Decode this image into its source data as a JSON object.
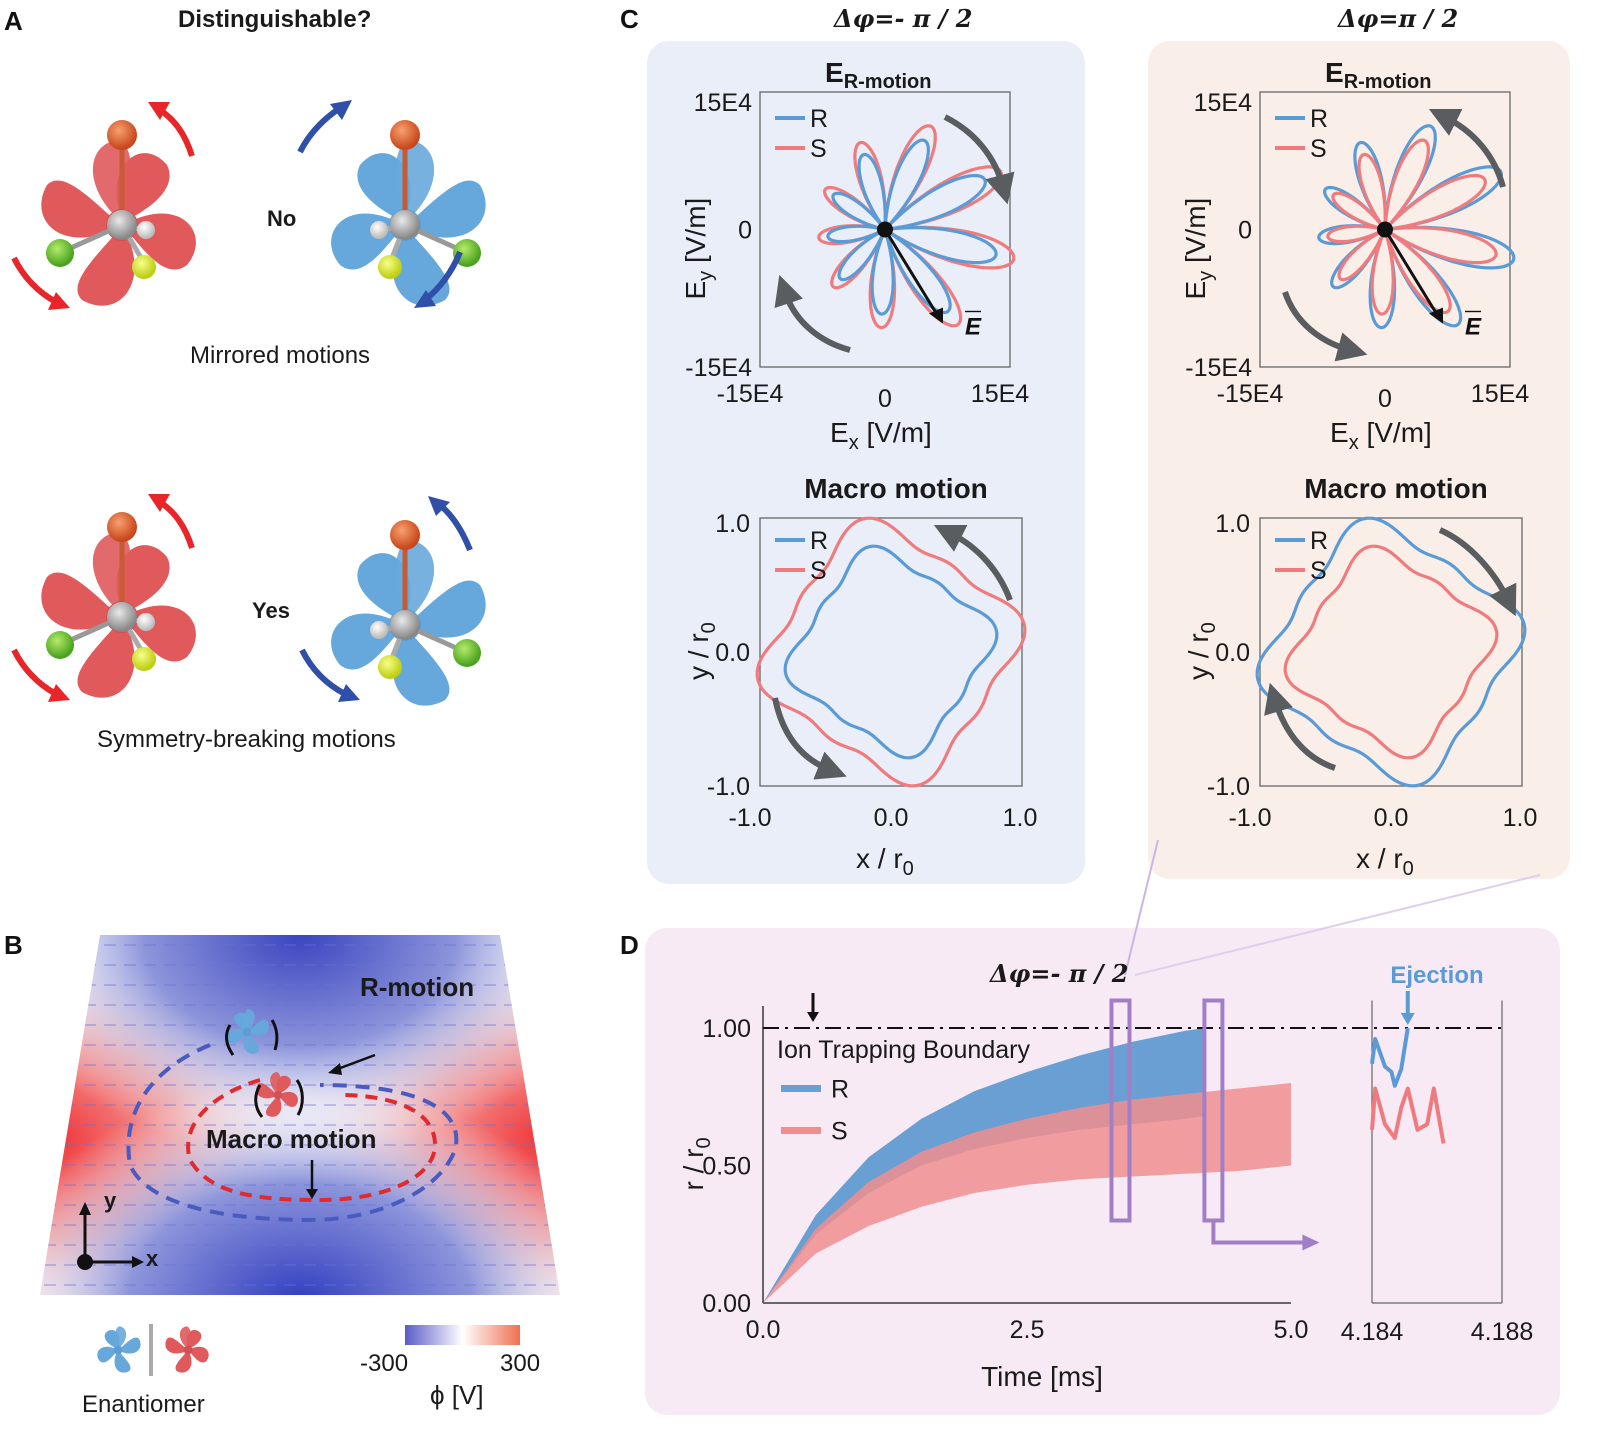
{
  "panels": {
    "A": {
      "letter": "A",
      "title": "Distinguishable?",
      "row1_answer": "No",
      "row1_caption": "Mirrored motions",
      "row2_answer": "Yes",
      "row2_caption": "Symmetry-breaking motions"
    },
    "B": {
      "letter": "B",
      "r_motion_label": "R-motion",
      "macro_motion_label": "Macro motion",
      "axis_x": "x",
      "axis_y": "y",
      "enantiomer_label": "Enantiomer",
      "colorbar": {
        "min": "-300",
        "max": "300",
        "label": "ϕ [V]",
        "colors": [
          "#5b5bc8",
          "#ffffff",
          "#f07050"
        ]
      }
    },
    "C": {
      "letter": "C",
      "left_phase": "Δφ=- π / 2",
      "right_phase": "Δφ=π / 2",
      "field_plot_title_main": "E",
      "field_plot_title_sub": "R-motion",
      "field_xlabel_main": "E",
      "field_xlabel_sub": "x",
      "field_xlabel_unit": " [V/m]",
      "field_ylabel_main": "E",
      "field_ylabel_sub": "y",
      "field_ylabel_unit": " [V/m]",
      "field_ticks": [
        "-15E4",
        "0",
        "15E4"
      ],
      "vector_label": "E",
      "macro_title": "Macro motion",
      "macro_xlabel": "x / r",
      "macro_ylabel": "y / r",
      "macro_sub": "0",
      "macro_ticks": [
        "-1.0",
        "0.0",
        "1.0"
      ],
      "legend": [
        "R",
        "S"
      ]
    },
    "D": {
      "letter": "D",
      "phase": "Δφ=- π / 2",
      "boundary_label": "Ion Trapping Boundary",
      "ejection_label": "Ejection",
      "xlabel": "Time [ms]",
      "ylabel": "r / r",
      "ylabel_sub": "0",
      "x_ticks": [
        "0.0",
        "2.5",
        "5.0"
      ],
      "y_ticks": [
        "0.00",
        "0.50",
        "1.00"
      ],
      "inset_x_ticks": [
        "4.184",
        "4.188"
      ],
      "legend": [
        "R",
        "S"
      ]
    }
  },
  "colors": {
    "R": "#5b9bd5",
    "S": "#ef7b7e",
    "R_band": "#6a9fd4",
    "S_band": "#f08e8e",
    "overlap_band": "#da8590",
    "highlight_box": "#a07fc6",
    "rotation_arrow": "#5a5d60"
  },
  "chart_data": [
    {
      "type": "line",
      "title": "E_R-motion (Δφ=-π/2)",
      "xlabel": "Ex [V/m]",
      "ylabel": "Ey [V/m]",
      "xlim": [
        -150000,
        150000
      ],
      "ylim": [
        -150000,
        150000
      ],
      "x_ticks": [
        "-15E4",
        "0",
        "15E4"
      ],
      "y_ticks": [
        "-15E4",
        "0",
        "15E4"
      ],
      "legend": [
        "R",
        "S"
      ],
      "legend_position": "top-left",
      "series": [
        {
          "name": "R",
          "shape": "9-petal rose",
          "max_radius": 125000
        },
        {
          "name": "S",
          "shape": "9-petal rose",
          "max_radius": 145000
        }
      ],
      "rotation": "clockwise",
      "annotation": "E vector"
    },
    {
      "type": "line",
      "title": "E_R-motion (Δφ=π/2)",
      "xlabel": "Ex [V/m]",
      "ylabel": "Ey [V/m]",
      "xlim": [
        -150000,
        150000
      ],
      "ylim": [
        -150000,
        150000
      ],
      "x_ticks": [
        "-15E4",
        "0",
        "15E4"
      ],
      "y_ticks": [
        "-15E4",
        "0",
        "15E4"
      ],
      "legend": [
        "R",
        "S"
      ],
      "legend_position": "top-left",
      "series": [
        {
          "name": "R",
          "shape": "9-petal rose",
          "max_radius": 145000
        },
        {
          "name": "S",
          "shape": "9-petal rose",
          "max_radius": 125000
        }
      ],
      "rotation": "counterclockwise",
      "annotation": "E vector"
    },
    {
      "type": "line",
      "title": "Macro motion (Δφ=-π/2)",
      "xlabel": "x / r0",
      "ylabel": "y / r0",
      "xlim": [
        -1.0,
        1.0
      ],
      "ylim": [
        -1.0,
        1.0
      ],
      "x_ticks": [
        "-1.0",
        "0.0",
        "1.0"
      ],
      "y_ticks": [
        "-1.0",
        "0.0",
        "1.0"
      ],
      "legend": [
        "R",
        "S"
      ],
      "legend_position": "top-left",
      "series": [
        {
          "name": "R",
          "shape": "closed 4-lobed orbit",
          "approx_radius": 0.68
        },
        {
          "name": "S",
          "shape": "closed 4-lobed orbit",
          "approx_radius": 0.86
        }
      ],
      "rotation": "counterclockwise"
    },
    {
      "type": "line",
      "title": "Macro motion (Δφ=π/2)",
      "xlabel": "x / r0",
      "ylabel": "y / r0",
      "xlim": [
        -1.0,
        1.0
      ],
      "ylim": [
        -1.0,
        1.0
      ],
      "x_ticks": [
        "-1.0",
        "0.0",
        "1.0"
      ],
      "y_ticks": [
        "-1.0",
        "0.0",
        "1.0"
      ],
      "legend": [
        "R",
        "S"
      ],
      "legend_position": "top-left",
      "series": [
        {
          "name": "R",
          "shape": "closed 4-lobed orbit",
          "approx_radius": 0.86
        },
        {
          "name": "S",
          "shape": "closed 4-lobed orbit",
          "approx_radius": 0.68
        }
      ],
      "rotation": "clockwise"
    },
    {
      "type": "area",
      "title": "Δφ=-π/2",
      "xlabel": "Time [ms]",
      "ylabel": "r / r0",
      "xlim": [
        0.0,
        5.0
      ],
      "ylim": [
        0.0,
        1.0
      ],
      "x_ticks": [
        "0.0",
        "2.5",
        "5.0"
      ],
      "y_ticks": [
        "0.00",
        "0.50",
        "1.00"
      ],
      "legend": [
        "R",
        "S"
      ],
      "legend_position": "left",
      "reference_line": {
        "y": 1.0,
        "label": "Ion Trapping Boundary",
        "style": "dash-dot"
      },
      "series": [
        {
          "name": "R",
          "x": [
            0,
            0.5,
            1.0,
            1.5,
            2.0,
            2.5,
            3.0,
            3.5,
            4.0,
            4.19
          ],
          "upper": [
            0,
            0.32,
            0.53,
            0.67,
            0.77,
            0.84,
            0.9,
            0.95,
            0.99,
            1.0
          ],
          "lower": [
            0,
            0.25,
            0.4,
            0.5,
            0.56,
            0.6,
            0.63,
            0.65,
            0.67,
            0.68
          ]
        },
        {
          "name": "S",
          "x": [
            0,
            0.5,
            1.0,
            1.5,
            2.0,
            2.5,
            3.0,
            3.5,
            4.0,
            4.5,
            5.0
          ],
          "upper": [
            0,
            0.27,
            0.44,
            0.55,
            0.62,
            0.67,
            0.71,
            0.74,
            0.76,
            0.78,
            0.8
          ],
          "lower": [
            0,
            0.18,
            0.28,
            0.35,
            0.4,
            0.43,
            0.45,
            0.46,
            0.47,
            0.48,
            0.5
          ]
        }
      ]
    },
    {
      "type": "line",
      "title": "Inset zoom",
      "xlabel": "",
      "ylabel": "",
      "xlim": [
        4.184,
        4.188
      ],
      "ylim": [
        0.0,
        1.0
      ],
      "x_ticks": [
        "4.184",
        "4.188"
      ],
      "annotation": "Ejection",
      "series": [
        {
          "name": "R",
          "x": [
            4.184,
            4.1841,
            4.1844,
            4.1846,
            4.1847,
            4.1849,
            4.1851
          ],
          "y": [
            0.87,
            0.96,
            0.86,
            0.84,
            0.79,
            0.85,
            1.0
          ]
        },
        {
          "name": "S",
          "x": [
            4.184,
            4.1841,
            4.1844,
            4.1847,
            4.1849,
            4.1851,
            4.1854,
            4.1857,
            4.1859,
            4.1862
          ],
          "y": [
            0.63,
            0.78,
            0.65,
            0.6,
            0.71,
            0.78,
            0.63,
            0.65,
            0.78,
            0.58
          ]
        }
      ]
    }
  ]
}
